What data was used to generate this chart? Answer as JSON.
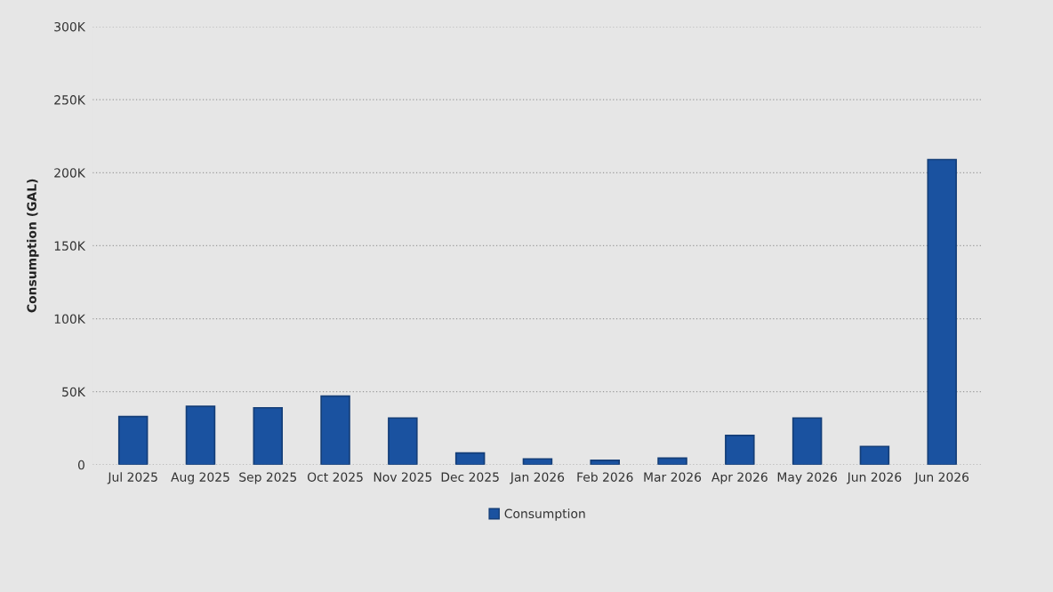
{
  "chart_data": {
    "type": "bar",
    "categories": [
      "Jul 2025",
      "Aug 2025",
      "Sep 2025",
      "Oct 2025",
      "Nov 2025",
      "Dec 2025",
      "Jan 2026",
      "Feb 2026",
      "Mar 2026",
      "Apr 2026",
      "May 2026",
      "Jun 2026",
      "Jun 2026"
    ],
    "series": [
      {
        "name": "Consumption",
        "color": "#1a52a0",
        "values": [
          33000,
          40000,
          39000,
          47000,
          32000,
          8000,
          4000,
          3000,
          4500,
          20000,
          32000,
          12500,
          209000
        ]
      }
    ],
    "ylabel": "Consumption (GAL)",
    "ylim": [
      0,
      300000
    ],
    "yticks": [
      0,
      {
        "value": 50000,
        "label": "50K"
      },
      {
        "value": 100000,
        "label": "100K"
      },
      {
        "value": 150000,
        "label": "150K"
      },
      {
        "value": 200000,
        "label": "200K"
      },
      {
        "value": 250000,
        "label": "250K"
      },
      {
        "value": 300000,
        "label": "300K"
      }
    ],
    "grid": "y",
    "legend": "bottom"
  }
}
